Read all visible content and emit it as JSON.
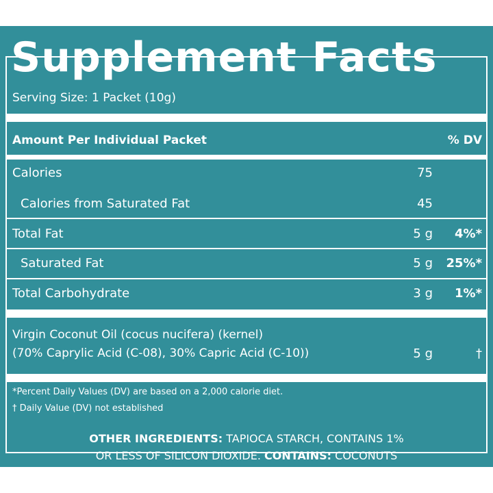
{
  "label": {
    "title": "Supplement Facts",
    "serving_size": "Serving Size: 1 Packet (10g)",
    "header": {
      "amount_label": "Amount Per Individual Packet",
      "dv_label": "% DV"
    },
    "rows": [
      {
        "label": "Calories",
        "amount": "75",
        "dv": ""
      },
      {
        "label": "Calories from Saturated Fat",
        "amount": "45",
        "dv": ""
      },
      {
        "label": "Total Fat",
        "amount": "5 g",
        "dv": "4%*"
      },
      {
        "label": "Saturated Fat",
        "amount": "5 g",
        "dv": "25%*"
      },
      {
        "label": "Total Carbohydrate",
        "amount": "3 g",
        "dv": "1%*"
      }
    ],
    "ingredient": {
      "line1": "Virgin Coconut Oil (cocus nucifera) (kernel)",
      "line2": "(70% Caprylic Acid (C-08), 30% Capric Acid (C-10))",
      "amount": "5 g",
      "dv": "†"
    },
    "footnotes": [
      "*Percent Daily Values (DV) are based on a 2,000 calorie diet.",
      "† Daily Value (DV) not established"
    ]
  },
  "other_ingredients": {
    "heading": "OTHER INGREDIENTS:",
    "text1": " TAPIOCA STARCH, CONTAINS 1%",
    "text2": "OR LESS OF SILICON DIOXIDE. ",
    "contains_heading": "CONTAINS:",
    "contains_text": " COCONUTS"
  },
  "colors": {
    "background": "#328f9a",
    "text": "#ffffff",
    "page": "#ffffff"
  }
}
